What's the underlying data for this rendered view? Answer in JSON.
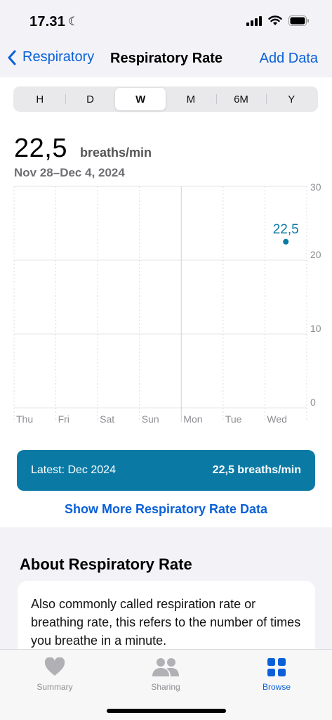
{
  "status_bar": {
    "time": "17.31",
    "moon_icon": "moon-icon",
    "signal_icon": "cellular-signal-icon",
    "wifi_icon": "wifi-icon",
    "battery_icon": "battery-icon"
  },
  "nav": {
    "back_label": "Respiratory",
    "title": "Respiratory Rate",
    "action_label": "Add Data"
  },
  "segments": {
    "items": [
      "H",
      "D",
      "W",
      "M",
      "6M",
      "Y"
    ],
    "selected": "W"
  },
  "summary": {
    "value": "22,5",
    "unit": "breaths/min",
    "date_range": "Nov 28–Dec 4, 2024"
  },
  "chart_data": {
    "type": "scatter",
    "categories": [
      "Thu",
      "Fri",
      "Sat",
      "Sun",
      "Mon",
      "Tue",
      "Wed"
    ],
    "y_ticks": [
      "30",
      "20",
      "10",
      "0"
    ],
    "ylim": [
      0,
      30
    ],
    "points": [
      {
        "category": "Wed",
        "value": 22.5,
        "label": "22,5"
      }
    ],
    "grid": true,
    "color": "#0a7aa5"
  },
  "latest": {
    "label": "Latest: Dec 2024",
    "value": "22,5 breaths/min"
  },
  "more_link": "Show More Respiratory Rate Data",
  "about": {
    "title": "About Respiratory Rate",
    "text": "Also commonly called respiration rate or breathing rate, this refers to the number of times you breathe in a minute."
  },
  "tab_bar": {
    "summary": {
      "label": "Summary",
      "icon": "heart-icon"
    },
    "sharing": {
      "label": "Sharing",
      "icon": "people-icon"
    },
    "browse": {
      "label": "Browse",
      "icon": "grid-icon"
    }
  },
  "colors": {
    "accent": "#0a60d8",
    "chart": "#0a7aa5",
    "inactive": "#b0b0b5"
  }
}
